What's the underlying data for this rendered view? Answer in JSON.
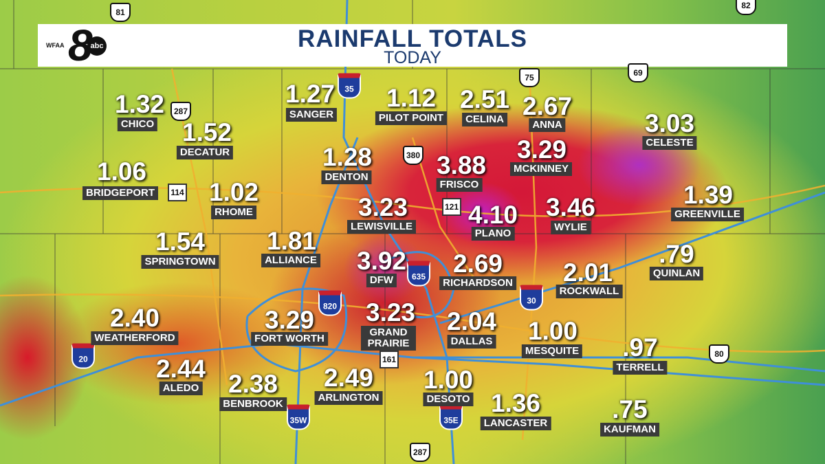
{
  "header": {
    "title": "RAINFALL TOTALS",
    "subtitle": "TODAY",
    "logo": {
      "station": "WFAA",
      "channel": "8",
      "network": "abc"
    }
  },
  "readings": [
    {
      "value": "1.32",
      "place": "CHICO"
    },
    {
      "value": "1.52",
      "place": "DECATUR"
    },
    {
      "value": "1.06",
      "place": "BRIDGEPORT"
    },
    {
      "value": "1.02",
      "place": "RHOME"
    },
    {
      "value": "1.27",
      "place": "SANGER"
    },
    {
      "value": "1.12",
      "place": "PILOT POINT"
    },
    {
      "value": "2.51",
      "place": "CELINA"
    },
    {
      "value": "2.67",
      "place": "ANNA"
    },
    {
      "value": "3.03",
      "place": "CELESTE"
    },
    {
      "value": "1.28",
      "place": "DENTON"
    },
    {
      "value": "3.88",
      "place": "FRISCO"
    },
    {
      "value": "3.29",
      "place": "MCKINNEY"
    },
    {
      "value": "3.23",
      "place": "LEWISVILLE"
    },
    {
      "value": "4.10",
      "place": "PLANO"
    },
    {
      "value": "3.46",
      "place": "WYLIE"
    },
    {
      "value": "1.39",
      "place": "GREENVILLE"
    },
    {
      "value": "1.54",
      "place": "SPRINGTOWN"
    },
    {
      "value": "1.81",
      "place": "ALLIANCE"
    },
    {
      "value": "3.92",
      "place": "DFW"
    },
    {
      "value": "2.69",
      "place": "RICHARDSON"
    },
    {
      "value": "2.01",
      "place": "ROCKWALL"
    },
    {
      "value": ".79",
      "place": "QUINLAN"
    },
    {
      "value": "2.40",
      "place": "WEATHERFORD"
    },
    {
      "value": "3.29",
      "place": "FORT WORTH"
    },
    {
      "value": "3.23",
      "place": "GRAND PRAIRIE"
    },
    {
      "value": "2.04",
      "place": "DALLAS"
    },
    {
      "value": "1.00",
      "place": "MESQUITE"
    },
    {
      "value": ".97",
      "place": "TERRELL"
    },
    {
      "value": "2.44",
      "place": "ALEDO"
    },
    {
      "value": "2.38",
      "place": "BENBROOK"
    },
    {
      "value": "2.49",
      "place": "ARLINGTON"
    },
    {
      "value": "1.00",
      "place": "DESOTO"
    },
    {
      "value": "1.36",
      "place": "LANCASTER"
    },
    {
      "value": ".75",
      "place": "KAUFMAN"
    }
  ],
  "shields": [
    "81",
    "82",
    "287",
    "35",
    "75",
    "69",
    "380",
    "114",
    "121",
    "820",
    "635",
    "30",
    "20",
    "161",
    "35W",
    "35E",
    "80",
    "287"
  ]
}
